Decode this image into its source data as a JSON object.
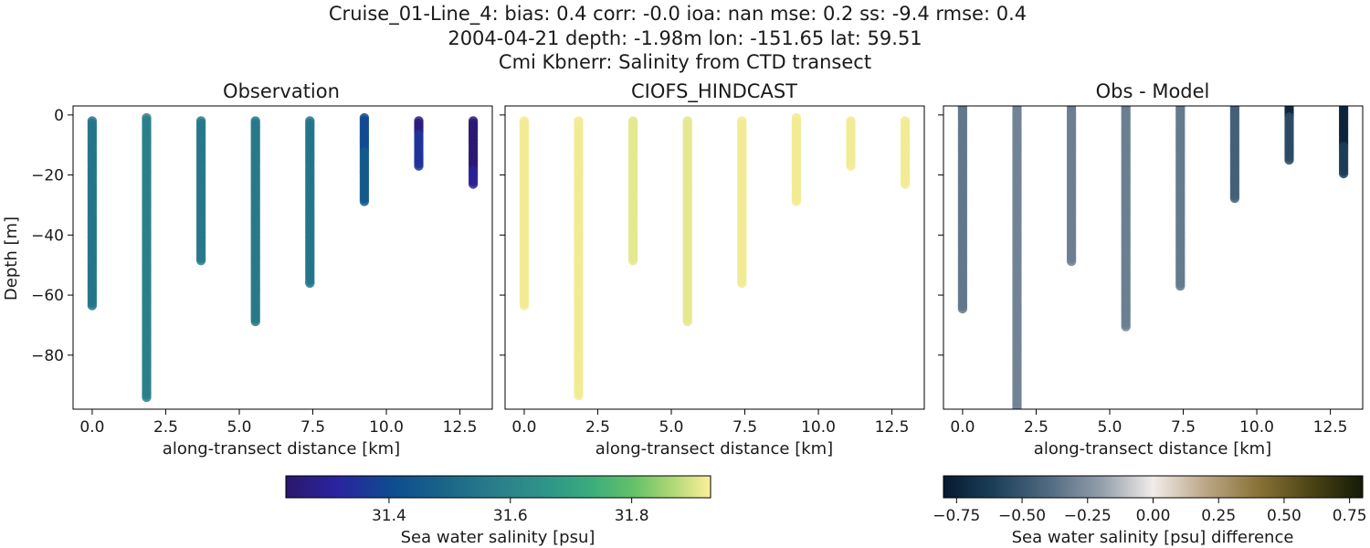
{
  "figure": {
    "title_line1": "Cruise_01-Line_4: bias: 0.4  corr: -0.0  ioa: nan  mse: 0.2  ss: -9.4  rmse: 0.4",
    "title_line2": "2004-04-21 depth: -1.98m lon: -151.65 lat: 59.51",
    "title_line3": "Cmi Kbnerr: Salinity from CTD transect"
  },
  "chart_data": [
    {
      "type": "scatter",
      "title": "Observation",
      "xlabel": "along-transect distance [km]",
      "ylabel": "Depth [m]",
      "xlim": [
        -0.65,
        13.6
      ],
      "ylim": [
        -98,
        3
      ],
      "xticks": [
        "0.0",
        "2.5",
        "5.0",
        "7.5",
        "10.0",
        "12.5"
      ],
      "yticks": [
        "0",
        "−20",
        "−40",
        "−60",
        "−80"
      ],
      "colormap": "haline",
      "profiles": [
        {
          "x": 0.0,
          "top": -2,
          "bottom": -64,
          "value": 31.55
        },
        {
          "x": 1.85,
          "top": -1,
          "bottom": -94,
          "value": 31.58
        },
        {
          "x": 3.7,
          "top": -2,
          "bottom": -49,
          "value": 31.56
        },
        {
          "x": 5.55,
          "top": -2,
          "bottom": -69,
          "value": 31.56
        },
        {
          "x": 7.4,
          "top": -2,
          "bottom": -56,
          "value": 31.55
        },
        {
          "x": 9.25,
          "top": -1,
          "bottom": -29,
          "value": 31.45,
          "top_value": 31.4,
          "top_depth": -12
        },
        {
          "x": 11.1,
          "top": -2,
          "bottom": -17,
          "value": 31.35,
          "top_value": 31.26,
          "top_depth": -6
        },
        {
          "x": 12.95,
          "top": -2,
          "bottom": -23,
          "value": 31.3,
          "top_value": 31.24,
          "top_depth": -18
        }
      ]
    },
    {
      "type": "scatter",
      "title": "CIOFS_HINDCAST",
      "xlabel": "along-transect distance [km]",
      "xlim": [
        -0.65,
        13.6
      ],
      "ylim": [
        -98,
        3
      ],
      "xticks": [
        "0.0",
        "2.5",
        "5.0",
        "7.5",
        "10.0",
        "12.5"
      ],
      "colormap": "haline",
      "profiles": [
        {
          "x": 0.0,
          "top": -2,
          "bottom": -64,
          "value": 31.92
        },
        {
          "x": 1.85,
          "top": -2,
          "bottom": -94,
          "value": 31.92
        },
        {
          "x": 3.7,
          "top": -2,
          "bottom": -49,
          "value": 31.91
        },
        {
          "x": 5.55,
          "top": -2,
          "bottom": -69,
          "value": 31.91
        },
        {
          "x": 7.4,
          "top": -2,
          "bottom": -56,
          "value": 31.92
        },
        {
          "x": 9.25,
          "top": -1,
          "bottom": -29,
          "value": 31.92
        },
        {
          "x": 11.1,
          "top": -2,
          "bottom": -17,
          "value": 31.92
        },
        {
          "x": 12.95,
          "top": -2,
          "bottom": -23,
          "value": 31.92
        }
      ]
    },
    {
      "type": "scatter",
      "title": "Obs - Model",
      "xlabel": "along-transect distance [km]",
      "xlim": [
        -0.65,
        13.6
      ],
      "ylim": [
        -98,
        3
      ],
      "xticks": [
        "0.0",
        "2.5",
        "5.0",
        "7.5",
        "10.0",
        "12.5"
      ],
      "colormap": "diff",
      "profiles": [
        {
          "x": 0.0,
          "top": 3,
          "bottom": -65,
          "value": -0.35
        },
        {
          "x": 1.85,
          "top": 3,
          "bottom": -98,
          "value": -0.3
        },
        {
          "x": 3.7,
          "top": 3,
          "bottom": -49,
          "value": -0.32
        },
        {
          "x": 5.55,
          "top": 3,
          "bottom": -71,
          "value": -0.32
        },
        {
          "x": 7.4,
          "top": 3,
          "bottom": -57,
          "value": -0.34
        },
        {
          "x": 9.25,
          "top": 3,
          "bottom": -28,
          "value": -0.45
        },
        {
          "x": 11.1,
          "top": 3,
          "bottom": -15,
          "value": -0.55,
          "top_value": -0.72,
          "top_depth": 0
        },
        {
          "x": 12.95,
          "top": 3,
          "bottom": -20,
          "value": -0.62,
          "top_value": -0.75,
          "top_depth": -10
        }
      ]
    }
  ],
  "colorbars": {
    "salinity": {
      "label": "Sea water salinity [psu]",
      "range": [
        31.23,
        31.93
      ],
      "ticks": [
        "31.4",
        "31.6",
        "31.8"
      ],
      "tick_values": [
        31.4,
        31.6,
        31.8
      ]
    },
    "difference": {
      "label": "Sea water salinity [psu] difference",
      "range": [
        -0.8,
        0.8
      ],
      "ticks": [
        "−0.75",
        "−0.50",
        "−0.25",
        "0.00",
        "0.25",
        "0.50",
        "0.75"
      ],
      "tick_values": [
        -0.75,
        -0.5,
        -0.25,
        0,
        0.25,
        0.5,
        0.75
      ]
    }
  }
}
